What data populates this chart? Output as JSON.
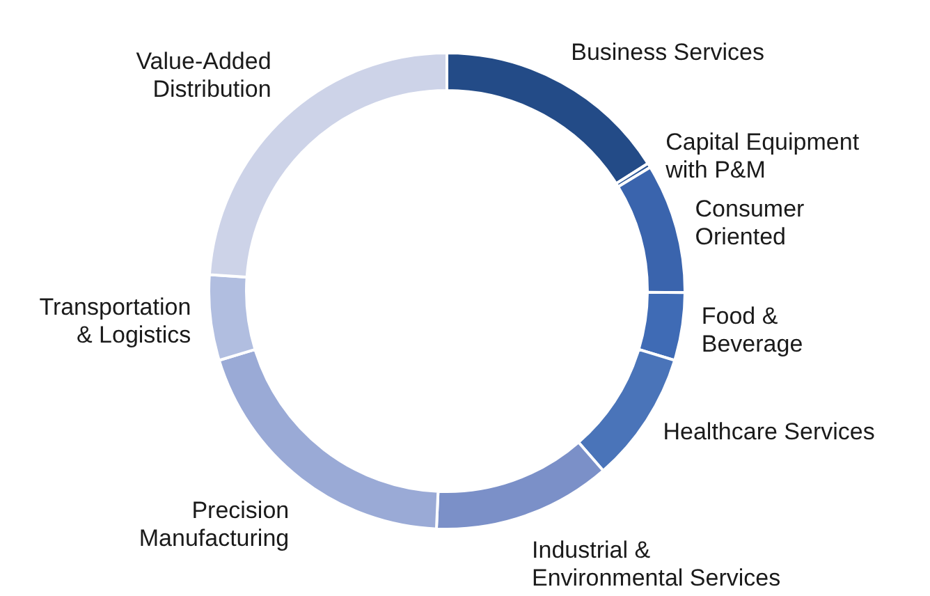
{
  "chart_data": {
    "type": "donut",
    "categories": [
      "Business Services",
      "Capital Equipment\nwith P&M",
      "Consumer\nOriented",
      "Food &\nBeverage",
      "Healthcare Services",
      "Industrial &\nEnvironmental Services",
      "Precision\nManufacturing",
      "Transportation\n& Logistics",
      "Value-Added\nDistribution"
    ],
    "values": [
      16.0,
      0.3,
      8.8,
      4.6,
      8.9,
      12.1,
      19.6,
      5.8,
      23.9
    ],
    "colors": [
      "#234b87",
      "#2a5596",
      "#3a64ad",
      "#3f6bb5",
      "#4a74b9",
      "#7b90c8",
      "#9aaad6",
      "#b1bee0",
      "#cdd3e8"
    ]
  }
}
